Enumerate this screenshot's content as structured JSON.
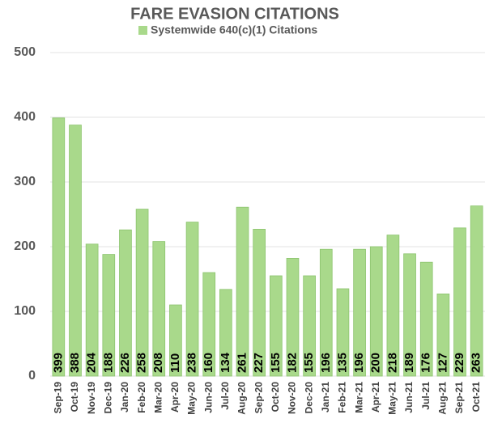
{
  "chart_data": {
    "type": "bar",
    "title": "FARE EVASION CITATIONS",
    "series": [
      {
        "name": "Systemwide 640(c)(1) Citations",
        "color": "#a9d98b",
        "values": [
          399,
          388,
          204,
          188,
          226,
          258,
          208,
          110,
          238,
          160,
          134,
          261,
          227,
          155,
          182,
          155,
          196,
          135,
          196,
          200,
          218,
          189,
          176,
          127,
          229,
          263
        ]
      }
    ],
    "categories": [
      "Sep-19",
      "Oct-19",
      "Nov-19",
      "Dec-19",
      "Jan-20",
      "Feb-20",
      "Mar-20",
      "Apr-20",
      "May-20",
      "Jun-20",
      "Jul-20",
      "Aug-20",
      "Sep-20",
      "Oct-20",
      "Nov-20",
      "Dec-20",
      "Jan-21",
      "Feb-21",
      "Mar-21",
      "Apr-21",
      "May-21",
      "Jun-21",
      "Jul-21",
      "Aug-21",
      "Sep-21",
      "Oct-21"
    ],
    "ylim": [
      0,
      500
    ],
    "yticks": [
      0,
      100,
      200,
      300,
      400,
      500
    ],
    "grid": true,
    "legend": "top"
  }
}
